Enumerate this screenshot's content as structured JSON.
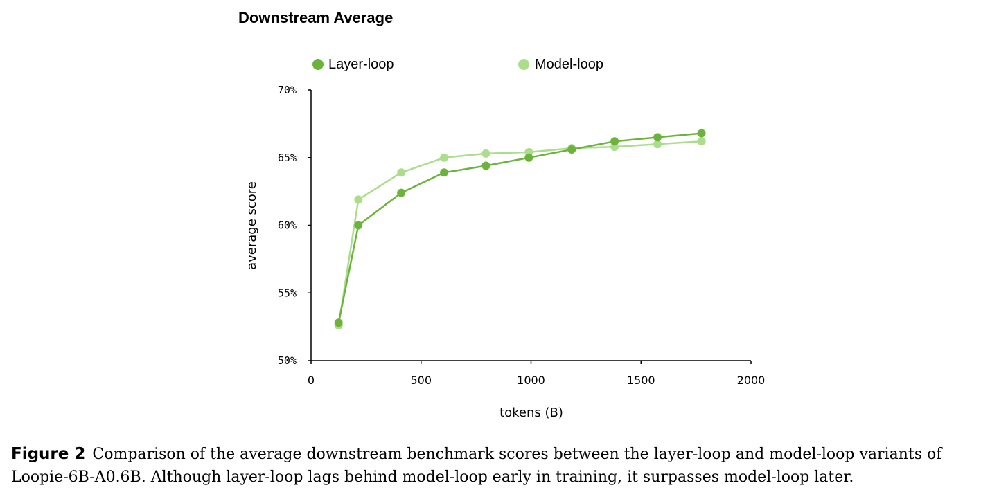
{
  "chart_data": {
    "type": "line",
    "title": "Downstream Average",
    "xlabel": "tokens (B)",
    "ylabel": "average score",
    "xlim": [
      0,
      2000
    ],
    "ylim": [
      50,
      70
    ],
    "x_ticks": [
      "0",
      "500",
      "1000",
      "1500",
      "2000"
    ],
    "y_ticks": [
      "70%",
      "65%",
      "60%",
      "55%",
      "50%"
    ],
    "grid": false,
    "legend_position": "top",
    "series": [
      {
        "name": "Layer-loop",
        "color": "#6bb33a",
        "x": [
          125,
          215,
          410,
          605,
          795,
          990,
          1185,
          1380,
          1575,
          1775
        ],
        "y": [
          52.8,
          60.0,
          62.4,
          63.9,
          64.4,
          65.0,
          65.6,
          66.2,
          66.5,
          66.8
        ]
      },
      {
        "name": "Model-loop",
        "color": "#acdd8c",
        "x": [
          125,
          215,
          410,
          605,
          795,
          990,
          1185,
          1380,
          1575,
          1775
        ],
        "y": [
          52.6,
          61.9,
          63.9,
          65.0,
          65.3,
          65.4,
          65.7,
          65.8,
          66.0,
          66.2
        ]
      }
    ]
  },
  "caption": {
    "label": "Figure 2",
    "text": "Comparison of the average downstream benchmark scores between the layer-loop and model-loop variants of Loopie-6B-A0.6B. Although layer-loop lags behind model-loop early in training, it surpasses model-loop later."
  }
}
